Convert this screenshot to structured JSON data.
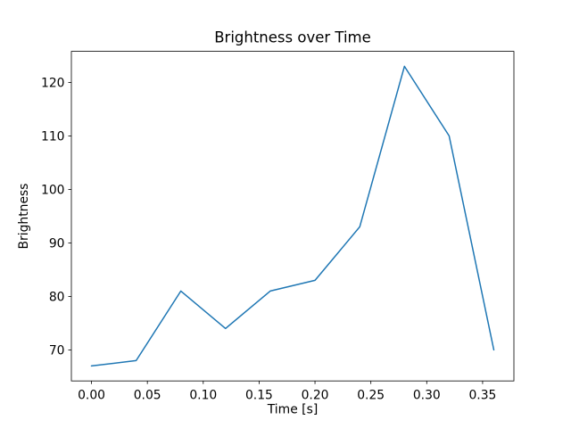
{
  "figure": {
    "background_color": "#ffffff",
    "frame_color": "#000000"
  },
  "chart_data": {
    "type": "line",
    "title": "Brightness over Time",
    "xlabel": "Time [s]",
    "ylabel": "Brightness",
    "x": [
      0.0,
      0.04,
      0.08,
      0.12,
      0.16,
      0.2,
      0.24,
      0.28,
      0.32,
      0.36
    ],
    "y": [
      67,
      68,
      81,
      74,
      81,
      83,
      93,
      123,
      110,
      70
    ],
    "line_color": "#1f77b4",
    "line_width": 1.5,
    "xlim": [
      -0.018,
      0.378
    ],
    "ylim": [
      64.2,
      125.8
    ],
    "xticks": [
      0.0,
      0.05,
      0.1,
      0.15,
      0.2,
      0.25,
      0.3,
      0.35
    ],
    "xtick_labels": [
      "0.00",
      "0.05",
      "0.10",
      "0.15",
      "0.20",
      "0.25",
      "0.30",
      "0.35"
    ],
    "yticks": [
      70,
      80,
      90,
      100,
      110,
      120
    ],
    "ytick_labels": [
      "70",
      "80",
      "90",
      "100",
      "110",
      "120"
    ],
    "grid": false,
    "legend": "none",
    "markers": "none"
  }
}
